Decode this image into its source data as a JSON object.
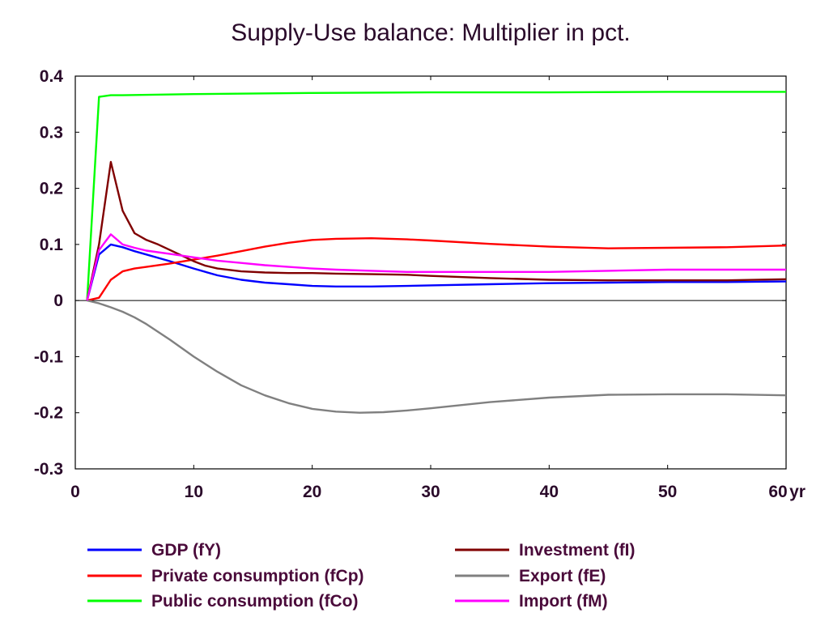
{
  "chart_data": {
    "type": "line",
    "title": "Supply-Use balance: Multiplier in pct.",
    "xlim": [
      0,
      60
    ],
    "ylim": [
      -0.3,
      0.4
    ],
    "x_unit_label": "yr",
    "x_ticks": [
      0,
      10,
      20,
      30,
      40,
      50,
      60
    ],
    "x_tick_labels": [
      "0",
      "10",
      "20",
      "30",
      "40",
      "50",
      "60"
    ],
    "y_ticks": [
      0.4,
      0.3,
      0.2,
      0.1,
      0,
      -0.1,
      -0.2,
      -0.3
    ],
    "y_tick_labels": [
      "0.4",
      "0.3",
      "0.2",
      "0.1",
      "0",
      "-0.1",
      "-0.2",
      "-0.3"
    ],
    "zero_line": true,
    "grid": false,
    "legend_position": "bottom",
    "series": [
      {
        "name": "GDP (fY)",
        "color": "#0000ff",
        "x": [
          1,
          2,
          3,
          4,
          5,
          6,
          8,
          10,
          12,
          14,
          16,
          18,
          20,
          22,
          25,
          28,
          30,
          35,
          40,
          45,
          50,
          55,
          60
        ],
        "y": [
          0,
          0.082,
          0.1,
          0.095,
          0.088,
          0.082,
          0.07,
          0.057,
          0.045,
          0.037,
          0.032,
          0.029,
          0.026,
          0.025,
          0.025,
          0.026,
          0.027,
          0.029,
          0.031,
          0.032,
          0.033,
          0.033,
          0.034
        ]
      },
      {
        "name": "Private consumption (fCp)",
        "color": "#ff0000",
        "x": [
          1,
          2,
          3,
          4,
          5,
          6,
          8,
          10,
          12,
          14,
          16,
          18,
          20,
          22,
          25,
          28,
          30,
          35,
          40,
          45,
          50,
          55,
          60
        ],
        "y": [
          0,
          0.005,
          0.037,
          0.052,
          0.057,
          0.06,
          0.066,
          0.073,
          0.08,
          0.088,
          0.096,
          0.103,
          0.108,
          0.11,
          0.111,
          0.109,
          0.107,
          0.101,
          0.096,
          0.093,
          0.094,
          0.095,
          0.098
        ]
      },
      {
        "name": "Public consumption (fCo)",
        "color": "#00ff00",
        "x": [
          1,
          2,
          3,
          4,
          10,
          20,
          30,
          40,
          50,
          60
        ],
        "y": [
          0,
          0.363,
          0.366,
          0.366,
          0.368,
          0.37,
          0.371,
          0.371,
          0.372,
          0.372
        ]
      },
      {
        "name": "Investment (fI)",
        "color": "#800000",
        "x": [
          1,
          2,
          3,
          4,
          5,
          6,
          7,
          8,
          9,
          10,
          11,
          12,
          14,
          16,
          18,
          20,
          22,
          25,
          28,
          30,
          35,
          40,
          45,
          50,
          55,
          60
        ],
        "y": [
          0,
          0.1,
          0.247,
          0.16,
          0.12,
          0.108,
          0.1,
          0.09,
          0.08,
          0.07,
          0.062,
          0.057,
          0.052,
          0.05,
          0.049,
          0.049,
          0.048,
          0.047,
          0.046,
          0.044,
          0.04,
          0.037,
          0.036,
          0.036,
          0.036,
          0.038
        ]
      },
      {
        "name": "Export (fE)",
        "color": "#808080",
        "x": [
          1,
          2,
          3,
          4,
          5,
          6,
          8,
          10,
          12,
          14,
          16,
          18,
          20,
          22,
          24,
          26,
          28,
          30,
          35,
          40,
          45,
          50,
          55,
          60
        ],
        "y": [
          0,
          -0.005,
          -0.012,
          -0.02,
          -0.03,
          -0.042,
          -0.07,
          -0.1,
          -0.127,
          -0.151,
          -0.169,
          -0.183,
          -0.193,
          -0.198,
          -0.2,
          -0.199,
          -0.196,
          -0.192,
          -0.181,
          -0.173,
          -0.168,
          -0.167,
          -0.167,
          -0.169
        ]
      },
      {
        "name": "Import (fM)",
        "color": "#ff00ff",
        "x": [
          1,
          2,
          3,
          4,
          5,
          6,
          8,
          10,
          12,
          14,
          16,
          18,
          20,
          22,
          25,
          28,
          30,
          35,
          40,
          45,
          50,
          55,
          60
        ],
        "y": [
          0,
          0.09,
          0.118,
          0.1,
          0.094,
          0.089,
          0.083,
          0.077,
          0.071,
          0.067,
          0.063,
          0.06,
          0.057,
          0.055,
          0.053,
          0.051,
          0.051,
          0.051,
          0.051,
          0.053,
          0.055,
          0.055,
          0.055
        ]
      }
    ],
    "legend_order": [
      0,
      3,
      1,
      4,
      2,
      5
    ]
  }
}
